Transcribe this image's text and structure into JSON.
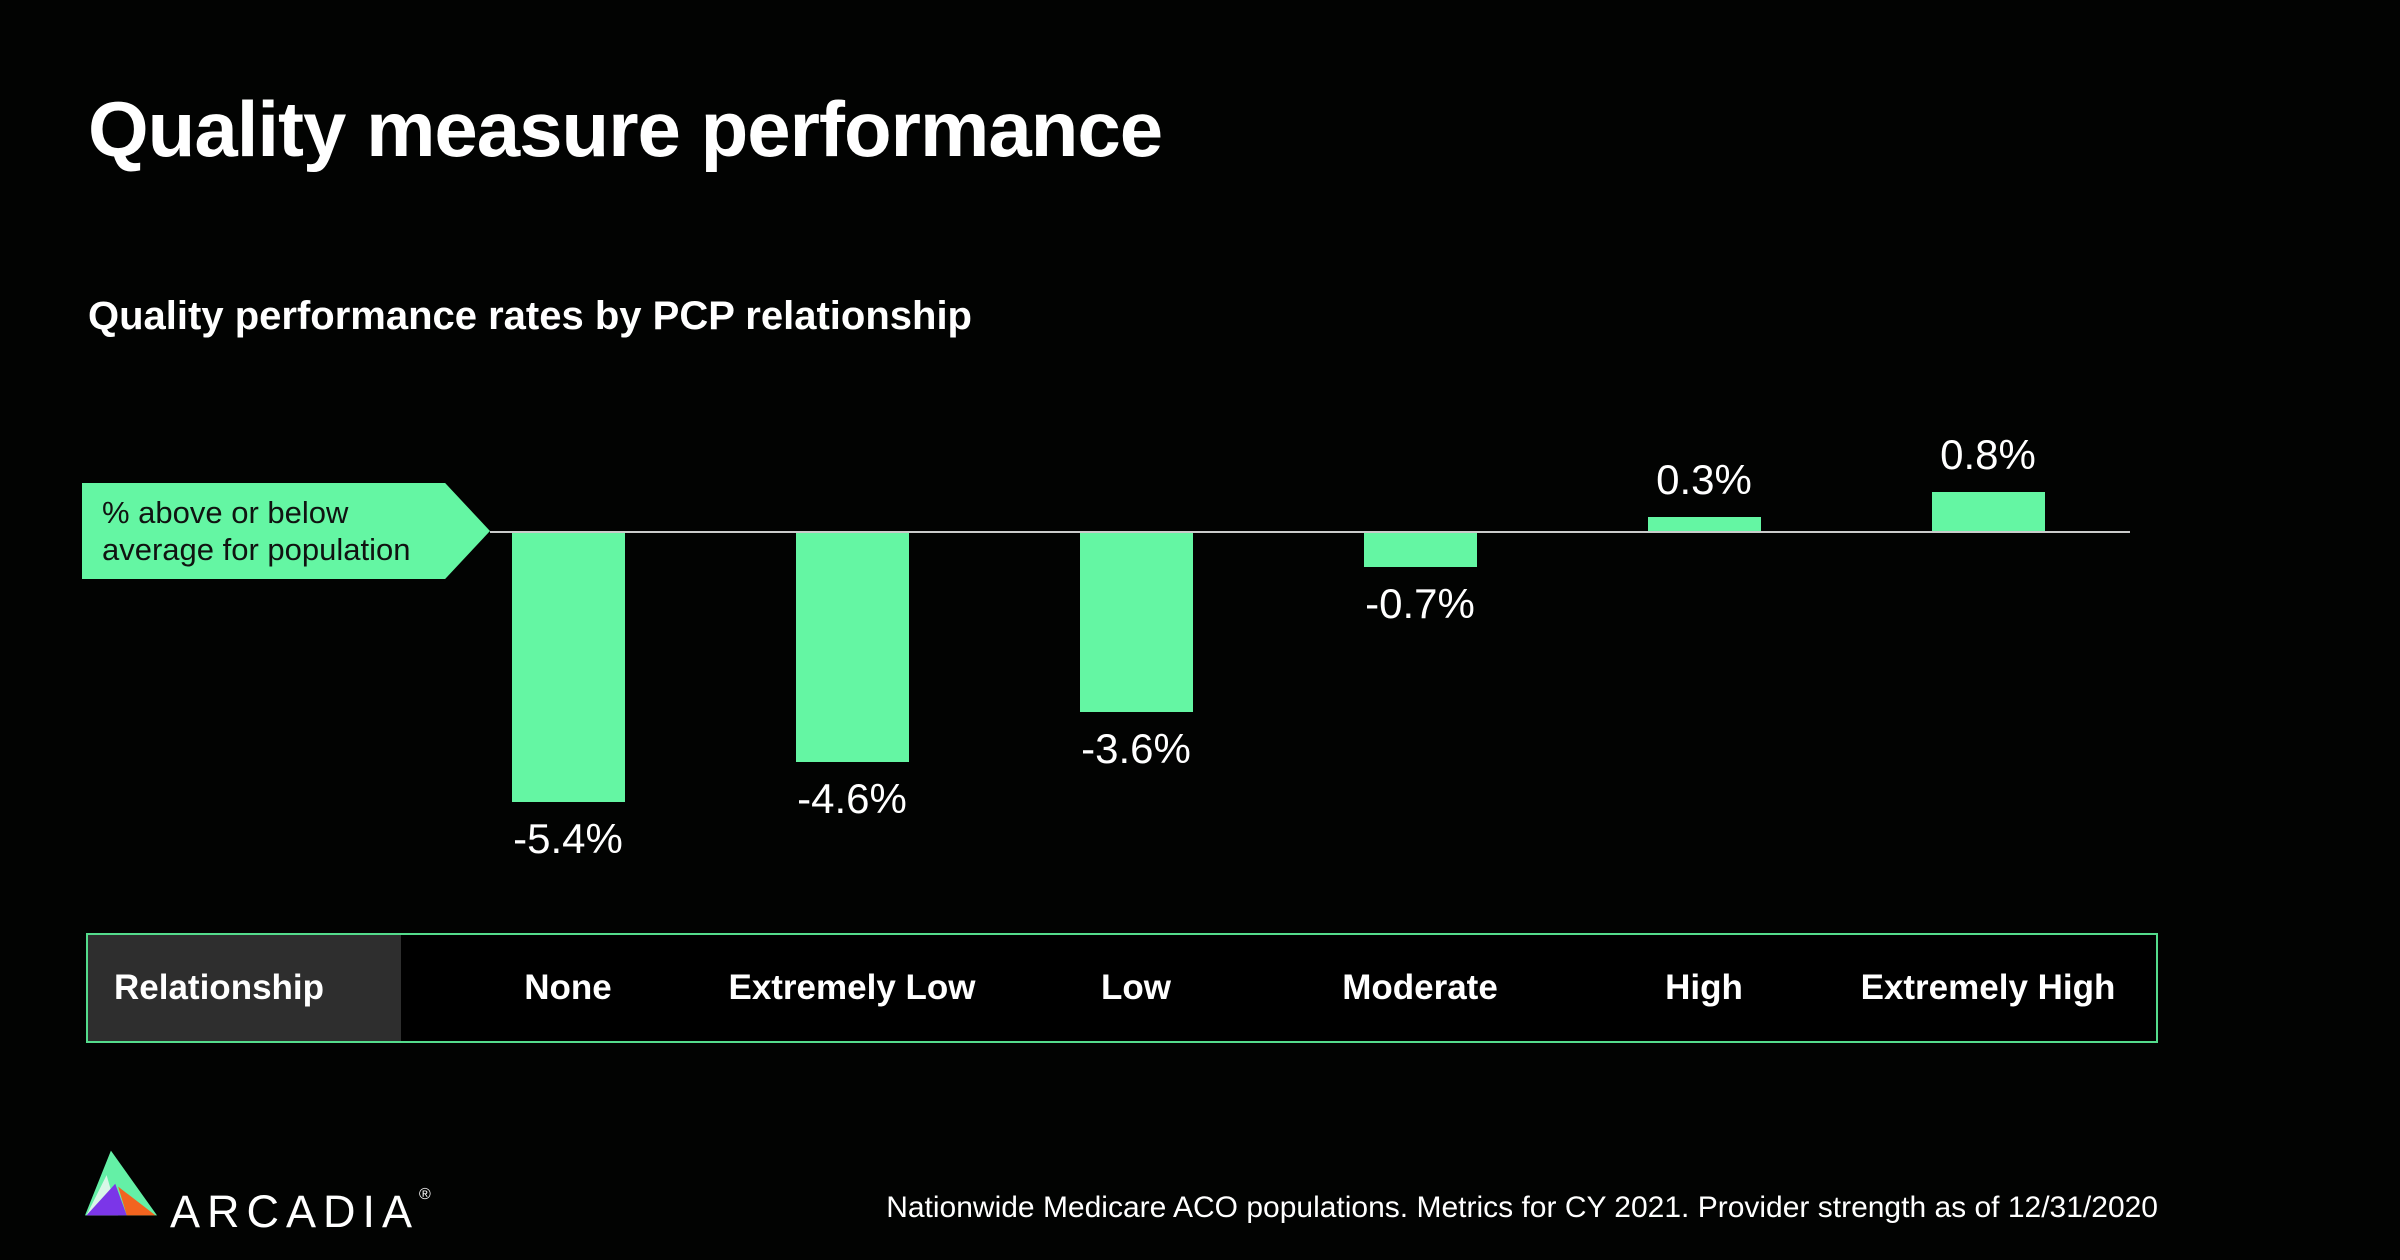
{
  "page": {
    "title": "Quality measure performance",
    "subtitle": "Quality performance rates by PCP relationship"
  },
  "callout": {
    "line1": "% above or below",
    "line2": "average for population"
  },
  "chart_data": {
    "type": "bar",
    "title": "Quality performance rates by PCP relationship",
    "xlabel": "Relationship",
    "ylabel": "% above or below average for population",
    "unit": "%",
    "categories": [
      "None",
      "Extremely Low",
      "Low",
      "Moderate",
      "High",
      "Extremely High"
    ],
    "values": [
      -5.4,
      -4.6,
      -3.6,
      -0.7,
      0.3,
      0.8
    ],
    "value_labels": [
      "-5.4%",
      "-4.6%",
      "-3.6%",
      "-0.7%",
      "0.3%",
      "0.8%"
    ],
    "baseline": 0,
    "ylim": [
      -6,
      1
    ],
    "grid": false,
    "legend": false,
    "bar_color": "#64F6A3"
  },
  "table": {
    "header": "Relationship",
    "columns": [
      "None",
      "Extremely Low",
      "Low",
      "Moderate",
      "High",
      "Extremely High"
    ]
  },
  "footer": {
    "brand": "ARCADIA",
    "registered": "®",
    "note": "Nationwide Medicare ACO populations. Metrics for CY 2021. Provider strength as of 12/31/2020"
  },
  "colors": {
    "background": "#020302",
    "bar": "#64F6A3",
    "axis_line": "#CBCBCB",
    "table_border": "#54DC8C",
    "header_cell_bg": "#2E2E2E",
    "callout_bg": "#64F6A3",
    "callout_text": "#101311",
    "text": "#FFFFFF",
    "logo_green": "#64F0A6",
    "logo_pale": "#D9F7E7",
    "logo_purple": "#7B36E8",
    "logo_orange": "#F2641F"
  }
}
